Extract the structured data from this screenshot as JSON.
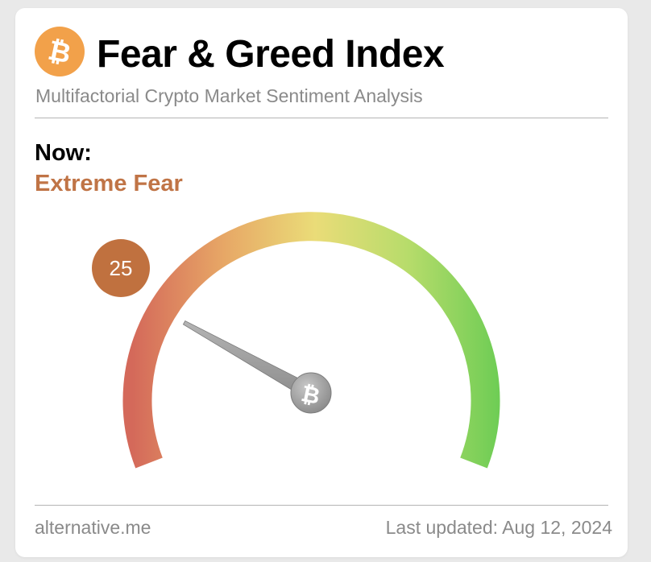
{
  "header": {
    "title": "Fear & Greed Index",
    "subtitle": "Multifactorial Crypto Market Sentiment Analysis",
    "logo_icon": "bitcoin-icon",
    "logo_color": "#f2a14a"
  },
  "now": {
    "label": "Now:",
    "status": "Extreme Fear",
    "status_color": "#c07446",
    "value": "25",
    "value_badge_color": "#c0713f"
  },
  "gauge": {
    "min": 0,
    "max": 100,
    "value": 25,
    "gradient_colors": [
      "#d4695a",
      "#e7a766",
      "#eadc78",
      "#b8dc6b",
      "#6fcd55"
    ],
    "needle_icon": "bitcoin-icon",
    "needle_color": "#9e9e9e"
  },
  "footer": {
    "source": "alternative.me",
    "last_updated": "Last updated: Aug 12, 2024"
  }
}
